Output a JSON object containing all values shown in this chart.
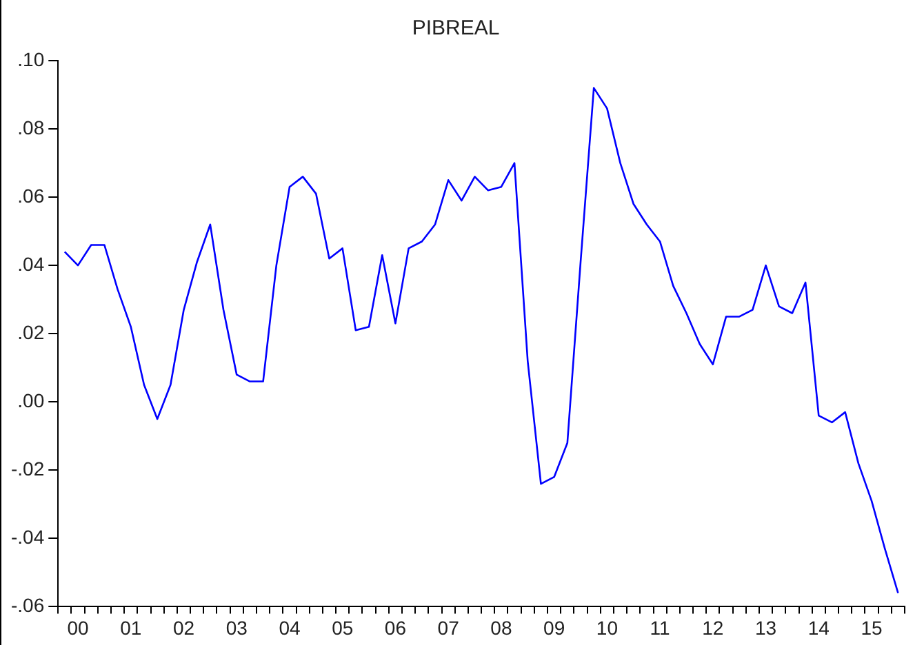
{
  "chart_data": {
    "type": "line",
    "title": "PIBREAL",
    "categories": [
      null,
      "00",
      null,
      null,
      null,
      "01",
      null,
      null,
      null,
      "02",
      null,
      null,
      null,
      "03",
      null,
      null,
      null,
      "04",
      null,
      null,
      null,
      "05",
      null,
      null,
      null,
      "06",
      null,
      null,
      null,
      "07",
      null,
      null,
      null,
      "08",
      null,
      null,
      null,
      "09",
      null,
      null,
      null,
      "10",
      null,
      null,
      null,
      "11",
      null,
      null,
      null,
      "12",
      null,
      null,
      null,
      "13",
      null,
      null,
      null,
      "14",
      null,
      null,
      null,
      "15",
      null,
      null
    ],
    "values": [
      0.044,
      0.04,
      0.046,
      0.046,
      0.033,
      0.022,
      0.005,
      -0.005,
      0.005,
      0.027,
      0.041,
      0.052,
      0.027,
      0.008,
      0.006,
      0.006,
      0.04,
      0.063,
      0.066,
      0.061,
      0.042,
      0.045,
      0.021,
      0.022,
      0.043,
      0.023,
      0.045,
      0.047,
      0.052,
      0.065,
      0.059,
      0.066,
      0.062,
      0.063,
      0.07,
      0.012,
      -0.024,
      -0.022,
      -0.012,
      0.041,
      0.092,
      0.086,
      0.07,
      0.058,
      0.052,
      0.047,
      0.034,
      0.026,
      0.017,
      0.011,
      0.025,
      0.025,
      0.027,
      0.04,
      0.028,
      0.026,
      0.035,
      -0.004,
      -0.006,
      -0.003,
      -0.018,
      -0.029,
      -0.043,
      -0.056
    ],
    "color": "#0000ff",
    "legend": false,
    "grid": false,
    "marker": "none",
    "ylim": [
      -0.06,
      0.1
    ],
    "yticks": [
      {
        "value": -0.06,
        "label": "-.06"
      },
      {
        "value": -0.04,
        "label": "-.04"
      },
      {
        "value": -0.02,
        "label": "-.02"
      },
      {
        "value": 0,
        "label": ".00"
      },
      {
        "value": 0.02,
        "label": ".02"
      },
      {
        "value": 0.04,
        "label": ".04"
      },
      {
        "value": 0.06,
        "label": ".06"
      },
      {
        "value": 0.08,
        "label": ".08"
      },
      {
        "value": 0.1,
        "label": ".10"
      }
    ]
  }
}
